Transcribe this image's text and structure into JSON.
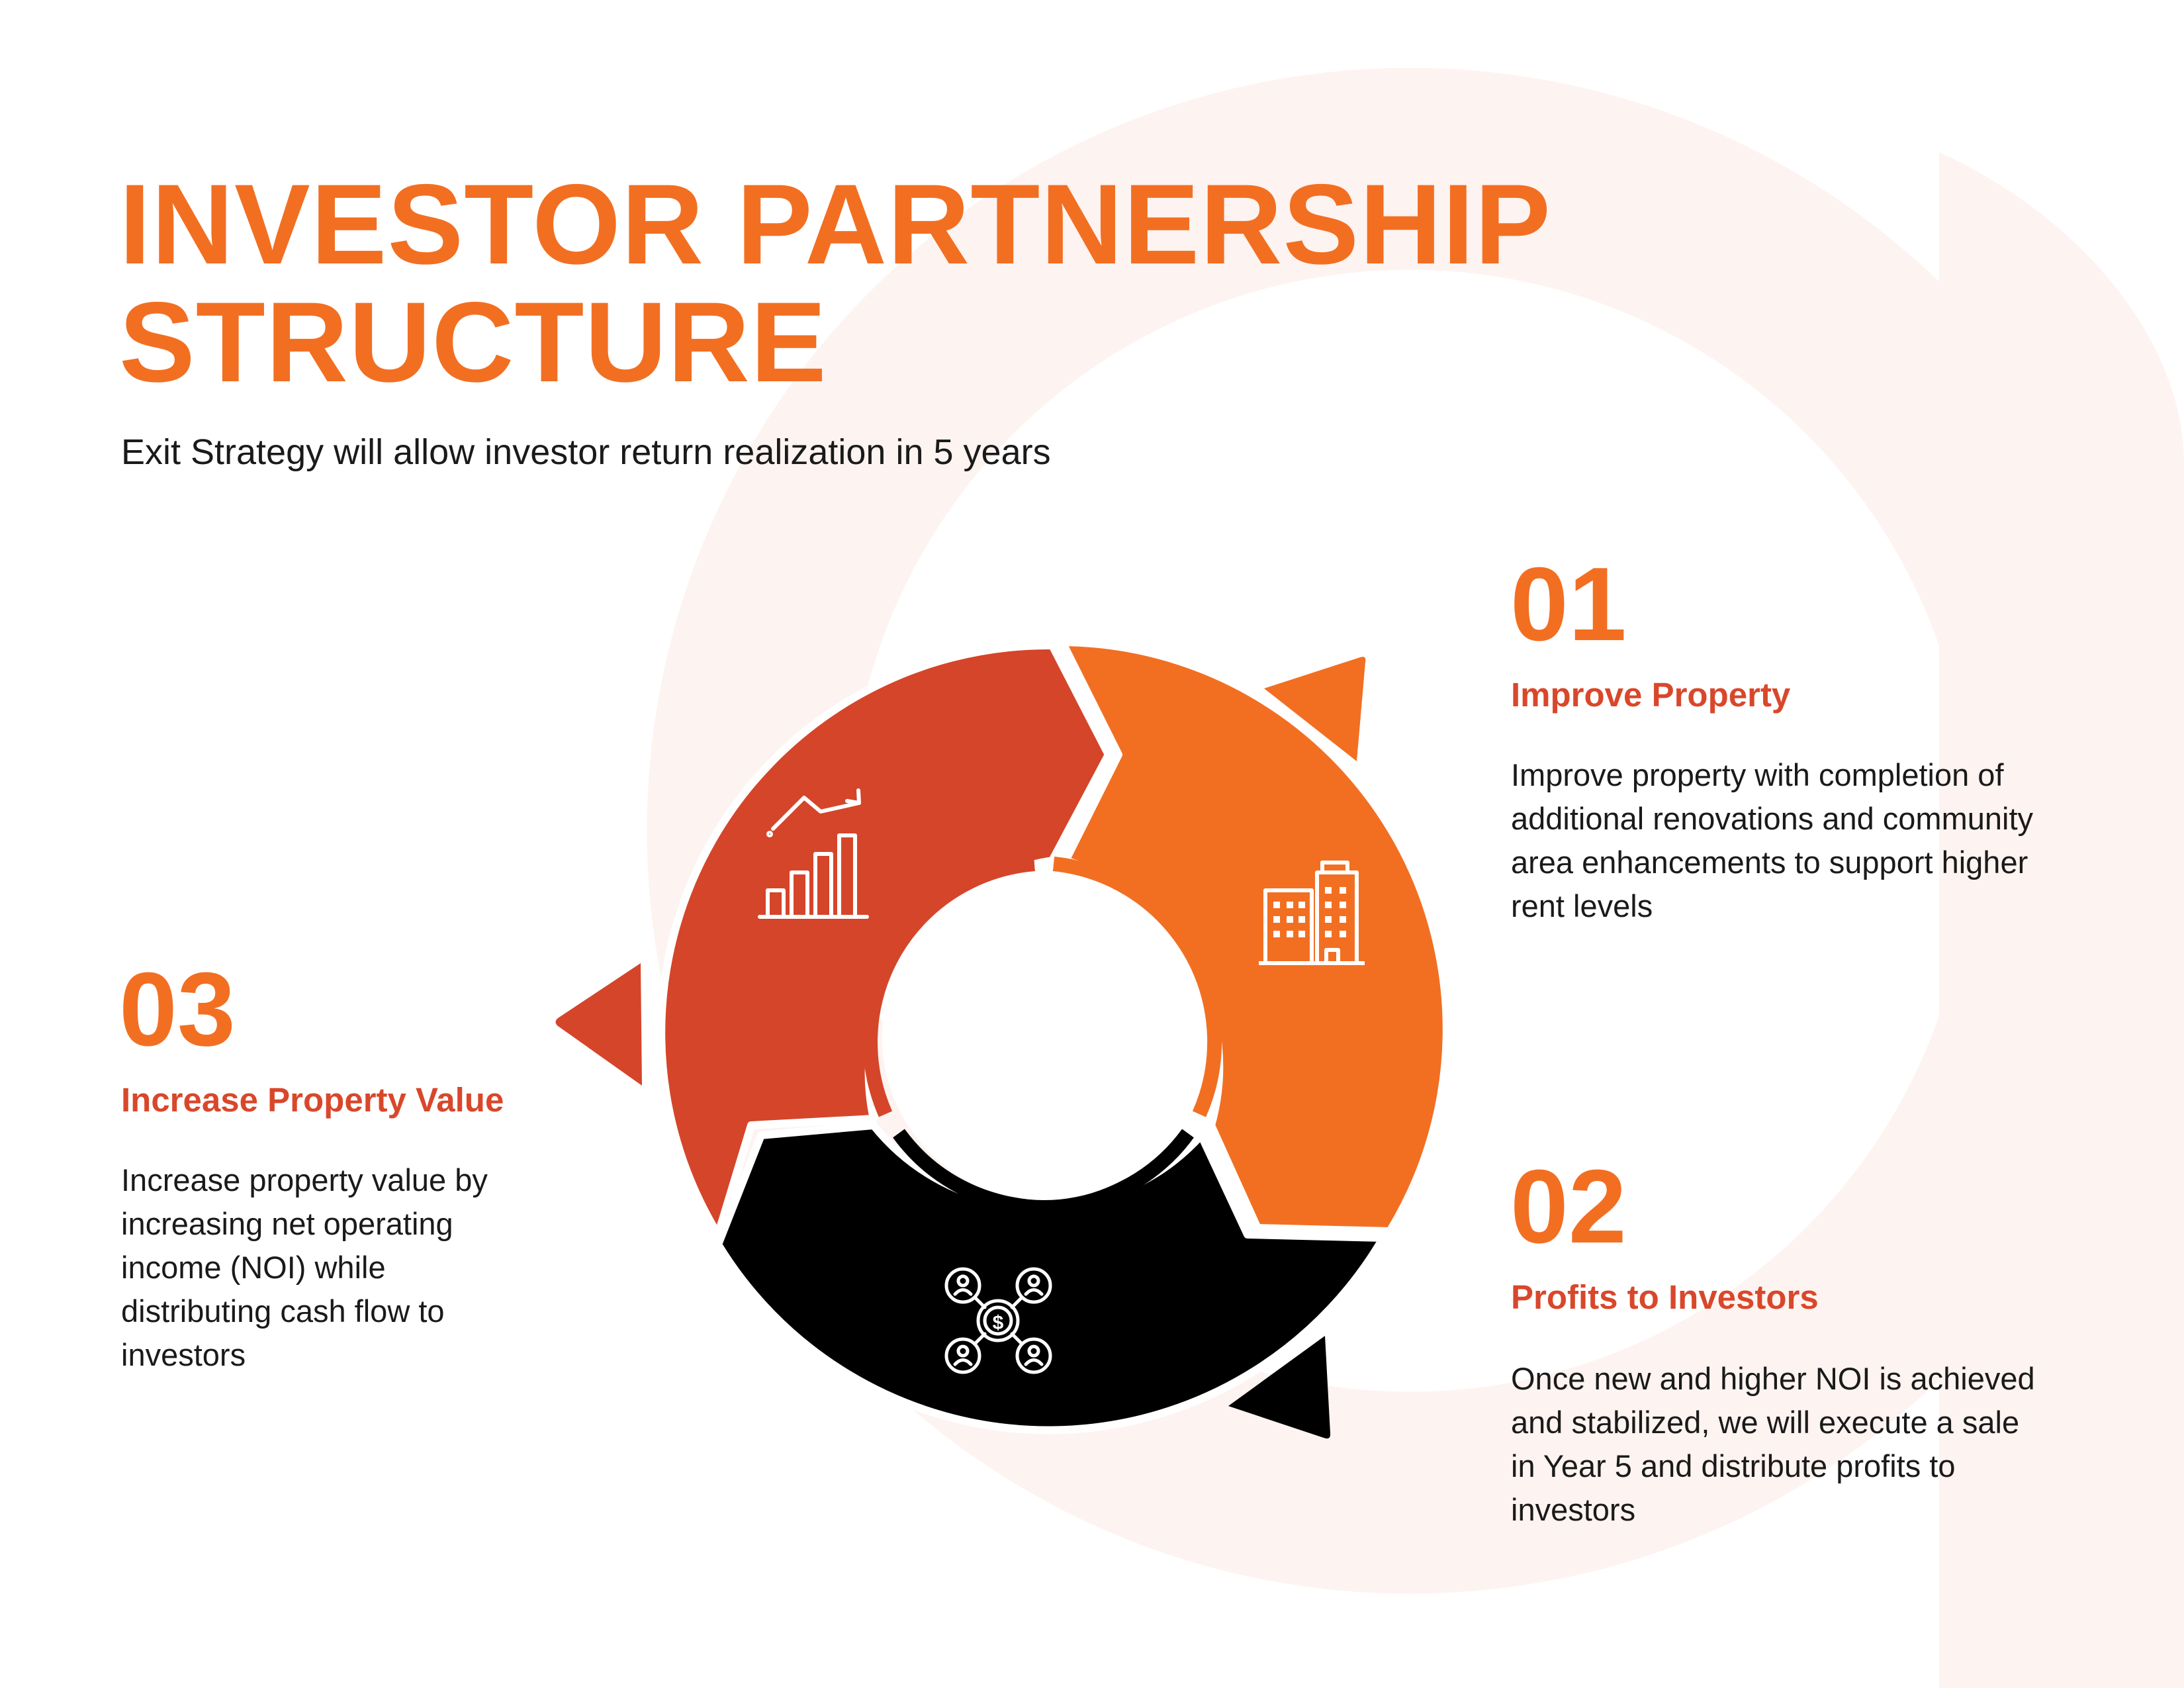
{
  "title": {
    "line1": "INVESTOR PARTNERSHIP",
    "line2": "STRUCTURE"
  },
  "subtitle": "Exit Strategy will allow investor return realization in 5 years",
  "colors": {
    "orange": "#f26f22",
    "red_orange": "#d5452a",
    "black": "#000000",
    "faint_ring": "#fdf1ee"
  },
  "steps": [
    {
      "number": "01",
      "title": "Improve Property",
      "body": [
        "Improve property with  completion of",
        "additional renovations and community",
        "area enhancements to support  higher",
        "rent levels"
      ],
      "icon": "building-icon",
      "segment_color": "#f26f22"
    },
    {
      "number": "02",
      "title": "Profits to Investors",
      "body": [
        "Once new and higher NOI is  achieved",
        "and stabilized, we  will execute a sale",
        "in Year 5  and distribute profits to",
        "investors"
      ],
      "icon": "investors-network-icon",
      "segment_color": "#000000"
    },
    {
      "number": "03",
      "title": "Increase Property Value",
      "body": [
        "Increase property value by",
        "increasing net operating",
        "income (NOI) while",
        "distributing cash flow to",
        "investors"
      ],
      "icon": "growth-chart-icon",
      "segment_color": "#d5452a"
    }
  ]
}
